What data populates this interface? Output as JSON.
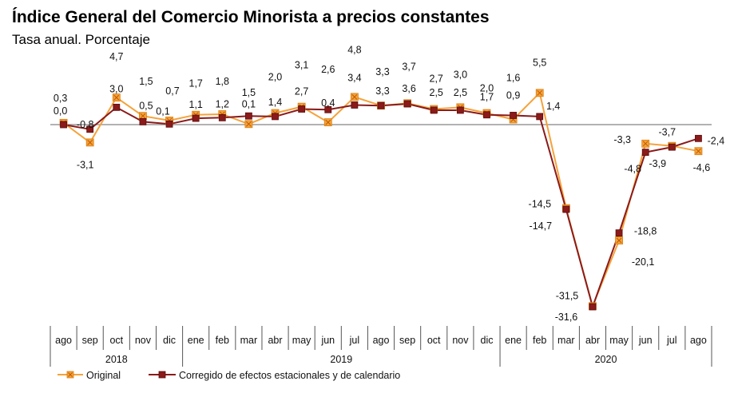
{
  "title": "Índice General del Comercio Minorista a precios constantes",
  "subtitle": "Tasa anual. Porcentaje",
  "chart_data": {
    "type": "line",
    "categories": [
      "ago",
      "sep",
      "oct",
      "nov",
      "dic",
      "ene",
      "feb",
      "mar",
      "abr",
      "may",
      "jun",
      "jul",
      "ago",
      "sep",
      "oct",
      "nov",
      "dic",
      "ene",
      "feb",
      "mar",
      "abr",
      "may",
      "jun",
      "jul",
      "ago"
    ],
    "years": [
      {
        "label": "2018",
        "start": 0,
        "end": 4
      },
      {
        "label": "2019",
        "start": 5,
        "end": 16
      },
      {
        "label": "2020",
        "start": 17,
        "end": 24
      }
    ],
    "series": [
      {
        "name": "Original",
        "color": "#f5a23a",
        "values": [
          0.3,
          -3.1,
          4.7,
          1.5,
          0.7,
          1.7,
          1.8,
          0.1,
          2.0,
          3.1,
          0.4,
          4.8,
          3.3,
          3.7,
          2.7,
          3.0,
          2.0,
          0.9,
          5.5,
          -14.5,
          -31.5,
          -20.1,
          -3.3,
          -3.7,
          -4.6
        ],
        "labels": [
          "0,3",
          "-3,1",
          "4,7",
          "1,5",
          "0,7",
          "1,7",
          "1,8",
          "0,1",
          "2,0",
          "3,1",
          "0,4",
          "4,8",
          "3,3",
          "3,7",
          "2,7",
          "3,0",
          "2,0",
          "0,9",
          "5,5",
          "-14,5",
          "-31,5",
          "-20,1",
          "-3,3",
          "-3,7",
          "-4,6"
        ]
      },
      {
        "name": "Corregido de efectos estacionales y de calendario",
        "color": "#8b1a1a",
        "values": [
          0.0,
          -0.8,
          3.0,
          0.5,
          0.1,
          1.1,
          1.2,
          1.5,
          1.4,
          2.7,
          2.6,
          3.4,
          3.3,
          3.6,
          2.5,
          2.5,
          1.7,
          1.6,
          1.4,
          -14.7,
          -31.6,
          -18.8,
          -4.8,
          -3.9,
          -2.4
        ],
        "labels": [
          "0,0",
          "-0,8",
          "3,0",
          "0,5",
          "0,1",
          "1,1",
          "1,2",
          "1,5",
          "1,4",
          "2,7",
          "2,6",
          "3,4",
          "3,3",
          "3,6",
          "2,5",
          "2,5",
          "1,7",
          "1,6",
          "1,4",
          "-14,7",
          "-31,6",
          "-18,8",
          "-4,8",
          "-3,9",
          "-2,4"
        ]
      }
    ],
    "ylim": [
      -35,
      10
    ],
    "grid": false,
    "legend_position": "bottom-left"
  }
}
